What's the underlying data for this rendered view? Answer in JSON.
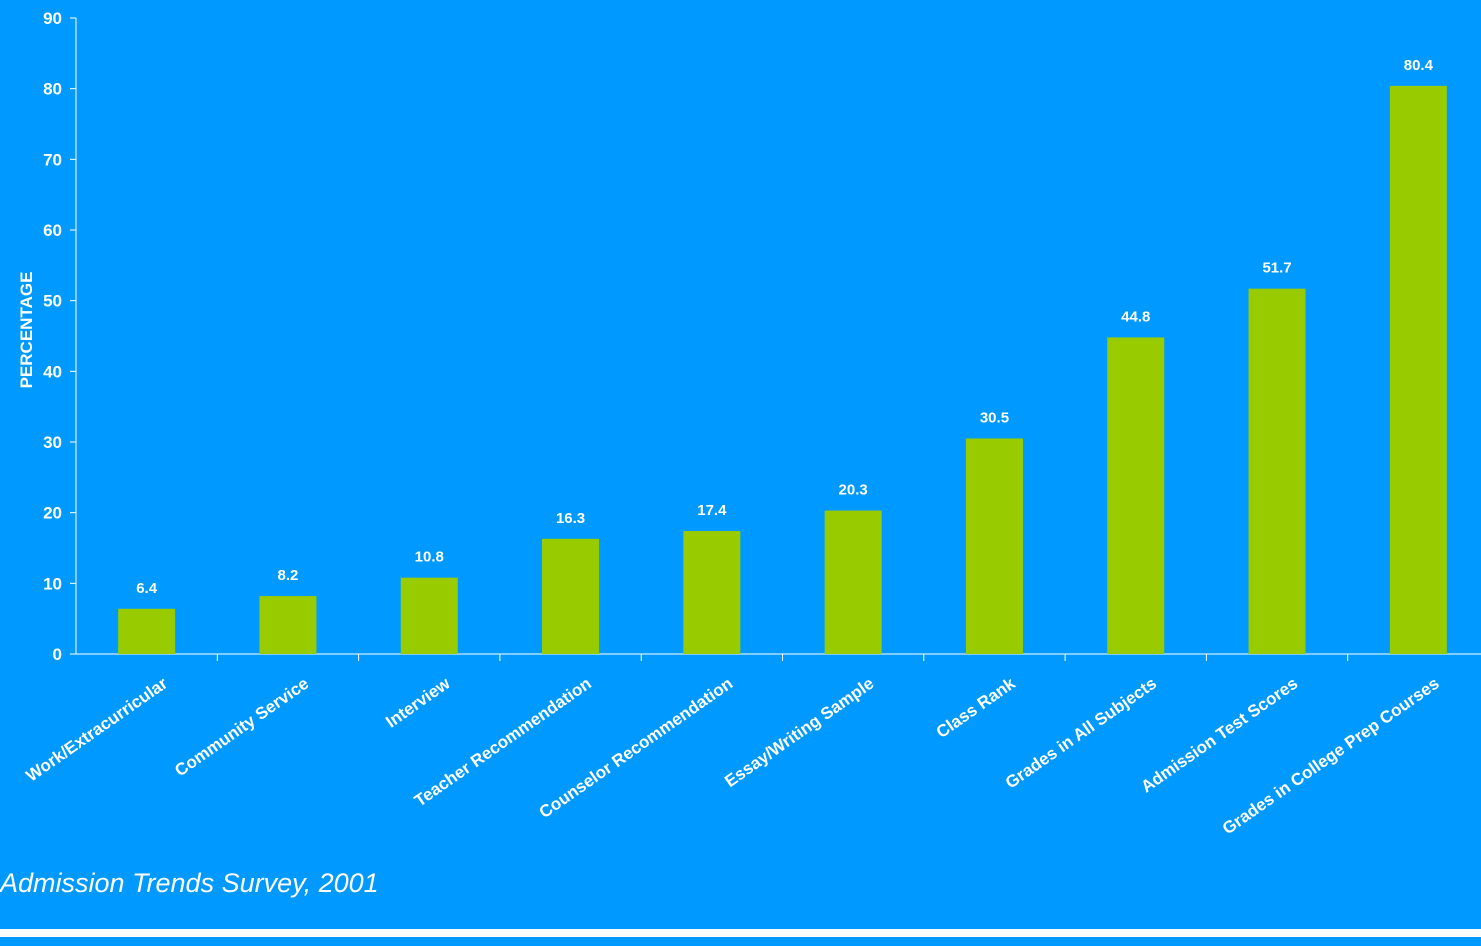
{
  "chart_data": {
    "type": "bar",
    "categories": [
      "Work/Extracurricular",
      "Community Service",
      "Interview",
      "Teacher Recommendation",
      "Counselor Recommendation",
      "Essay/Writing Sample",
      "Class Rank",
      "Grades in All Subjects",
      "Admission Test Scores",
      "Grades in College Prep Courses"
    ],
    "values": [
      6.4,
      8.2,
      10.8,
      16.3,
      17.4,
      20.3,
      30.5,
      44.8,
      51.7,
      80.4
    ],
    "data_labels": [
      "6.4",
      "8.2",
      "10.8",
      "16.3",
      "17.4",
      "20.3",
      "30.5",
      "44.8",
      "51.7",
      "80.4"
    ],
    "ylabel": "PERCENTAGE",
    "ylim": [
      0,
      90
    ],
    "yticks": [
      0,
      10,
      20,
      30,
      40,
      50,
      60,
      70,
      80,
      90
    ],
    "grid": false,
    "colors": {
      "background": "#0099ff",
      "bar": "#99cc00",
      "text": "#ffffff",
      "axis": "#ffffff"
    }
  },
  "source_note": "Admission Trends Survey, 2001"
}
